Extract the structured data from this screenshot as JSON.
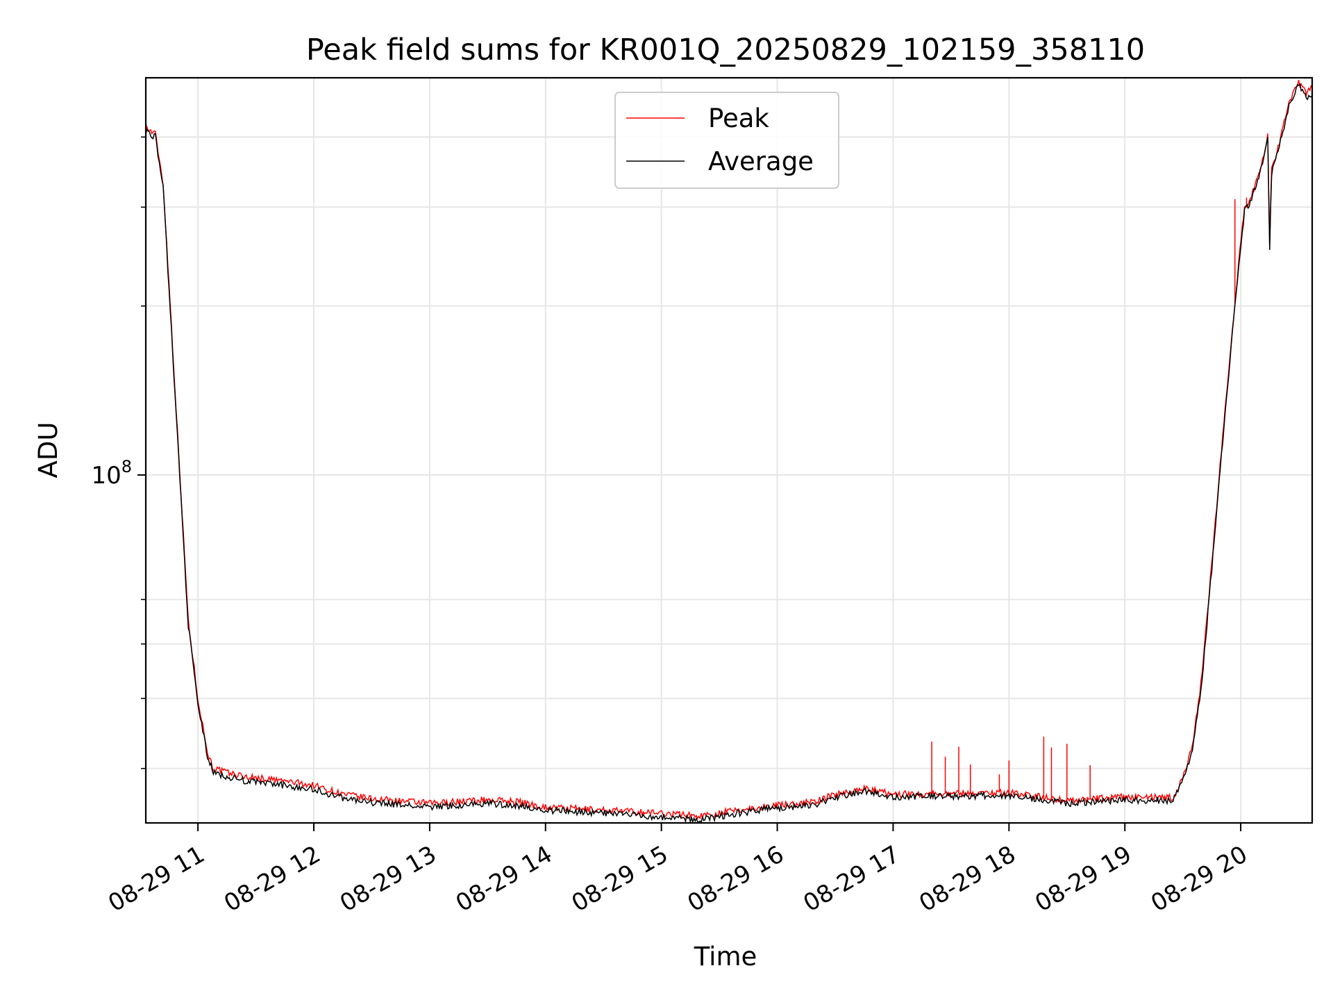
{
  "chart_data": {
    "type": "line",
    "title": "Peak field sums for KR001Q_20250829_102159_358110",
    "xlabel": "Time",
    "ylabel": "ADU",
    "yscale": "log",
    "xlim": [
      "2025-08-29 10:33",
      "2025-08-29 20:37"
    ],
    "ylim": [
      24000000,
      510000000
    ],
    "grid": true,
    "legend_position": "top-center",
    "x_ticks": [
      "08-29 11",
      "08-29 12",
      "08-29 13",
      "08-29 14",
      "08-29 15",
      "08-29 16",
      "08-29 17",
      "08-29 18",
      "08-29 19",
      "08-29 20"
    ],
    "y_tick_labels": [
      {
        "base": "10",
        "exponent": "8",
        "value": 100000000
      }
    ],
    "y_minor_ticks": [
      30000000,
      40000000,
      50000000,
      60000000,
      200000000,
      300000000,
      400000000
    ],
    "series": [
      {
        "name": "Peak",
        "color": "#ff0000",
        "x": [
          "2025-08-29 10:33",
          "2025-08-29 10:38",
          "2025-08-29 10:42",
          "2025-08-29 10:45",
          "2025-08-29 10:50",
          "2025-08-29 10:55",
          "2025-08-29 11:00",
          "2025-08-29 11:05",
          "2025-08-29 11:08",
          "2025-08-29 11:15",
          "2025-08-29 11:25",
          "2025-08-29 11:45",
          "2025-08-29 12:00",
          "2025-08-29 12:15",
          "2025-08-29 12:30",
          "2025-08-29 13:00",
          "2025-08-29 13:30",
          "2025-08-29 13:45",
          "2025-08-29 14:00",
          "2025-08-29 14:30",
          "2025-08-29 15:00",
          "2025-08-29 15:20",
          "2025-08-29 15:40",
          "2025-08-29 16:00",
          "2025-08-29 16:20",
          "2025-08-29 16:30",
          "2025-08-29 16:45",
          "2025-08-29 17:00",
          "2025-08-29 17:30",
          "2025-08-29 18:00",
          "2025-08-29 18:30",
          "2025-08-29 19:00",
          "2025-08-29 19:25",
          "2025-08-29 19:30",
          "2025-08-29 19:35",
          "2025-08-29 19:40",
          "2025-08-29 19:45",
          "2025-08-29 19:50",
          "2025-08-29 19:55",
          "2025-08-29 19:59",
          "2025-08-29 20:02",
          "2025-08-29 20:05",
          "2025-08-29 20:10",
          "2025-08-29 20:14",
          "2025-08-29 20:15",
          "2025-08-29 20:16",
          "2025-08-29 20:20",
          "2025-08-29 20:25",
          "2025-08-29 20:30",
          "2025-08-29 20:34",
          "2025-08-29 20:37"
        ],
        "y": [
          415000000,
          405000000,
          330000000,
          220000000,
          110000000,
          55000000,
          40000000,
          32000000,
          30000000,
          29500000,
          29000000,
          28500000,
          28000000,
          27000000,
          26500000,
          26000000,
          26400000,
          26200000,
          25600000,
          25300000,
          25000000,
          24700000,
          25300000,
          25800000,
          26200000,
          27000000,
          27600000,
          27000000,
          27100000,
          27200000,
          26300000,
          26700000,
          26600000,
          28800000,
          33000000,
          44000000,
          70000000,
          110000000,
          170000000,
          240000000,
          300000000,
          310000000,
          350000000,
          400000000,
          260000000,
          350000000,
          390000000,
          460000000,
          500000000,
          480000000,
          490000000
        ],
        "spikes": [
          {
            "x": "2025-08-29 17:20",
            "y": 33500000
          },
          {
            "x": "2025-08-29 17:27",
            "y": 31500000
          },
          {
            "x": "2025-08-29 17:34",
            "y": 32800000
          },
          {
            "x": "2025-08-29 17:40",
            "y": 30500000
          },
          {
            "x": "2025-08-29 17:55",
            "y": 29300000
          },
          {
            "x": "2025-08-29 18:00",
            "y": 31000000
          },
          {
            "x": "2025-08-29 18:18",
            "y": 34200000
          },
          {
            "x": "2025-08-29 18:22",
            "y": 32700000
          },
          {
            "x": "2025-08-29 18:30",
            "y": 33200000
          },
          {
            "x": "2025-08-29 18:42",
            "y": 30400000
          },
          {
            "x": "2025-08-29 19:57",
            "y": 310000000
          },
          {
            "x": "2025-08-29 20:03",
            "y": 312000000
          }
        ]
      },
      {
        "name": "Average",
        "color": "#000000",
        "x": [
          "2025-08-29 10:33",
          "2025-08-29 10:38",
          "2025-08-29 10:42",
          "2025-08-29 10:45",
          "2025-08-29 10:50",
          "2025-08-29 10:55",
          "2025-08-29 11:00",
          "2025-08-29 11:05",
          "2025-08-29 11:08",
          "2025-08-29 11:15",
          "2025-08-29 11:25",
          "2025-08-29 11:45",
          "2025-08-29 12:00",
          "2025-08-29 12:15",
          "2025-08-29 12:30",
          "2025-08-29 13:00",
          "2025-08-29 13:30",
          "2025-08-29 13:45",
          "2025-08-29 14:00",
          "2025-08-29 14:30",
          "2025-08-29 15:00",
          "2025-08-29 15:20",
          "2025-08-29 15:40",
          "2025-08-29 16:00",
          "2025-08-29 16:20",
          "2025-08-29 16:30",
          "2025-08-29 16:45",
          "2025-08-29 17:00",
          "2025-08-29 17:30",
          "2025-08-29 18:00",
          "2025-08-29 18:30",
          "2025-08-29 19:00",
          "2025-08-29 19:25",
          "2025-08-29 19:30",
          "2025-08-29 19:35",
          "2025-08-29 19:40",
          "2025-08-29 19:45",
          "2025-08-29 19:50",
          "2025-08-29 19:55",
          "2025-08-29 19:59",
          "2025-08-29 20:02",
          "2025-08-29 20:05",
          "2025-08-29 20:10",
          "2025-08-29 20:14",
          "2025-08-29 20:15",
          "2025-08-29 20:16",
          "2025-08-29 20:20",
          "2025-08-29 20:25",
          "2025-08-29 20:30",
          "2025-08-29 20:34",
          "2025-08-29 20:37"
        ],
        "y": [
          410000000,
          400000000,
          325000000,
          215000000,
          108000000,
          54000000,
          39000000,
          31500000,
          29500000,
          29000000,
          28500000,
          28000000,
          27500000,
          26600000,
          26100000,
          25600000,
          26000000,
          25800000,
          25300000,
          25000000,
          24600000,
          24300000,
          25000000,
          25500000,
          25900000,
          26700000,
          27300000,
          26700000,
          26800000,
          26900000,
          26000000,
          26400000,
          26300000,
          28400000,
          32500000,
          43000000,
          68000000,
          108000000,
          168000000,
          237000000,
          296000000,
          306000000,
          345000000,
          395000000,
          255000000,
          345000000,
          385000000,
          455000000,
          495000000,
          470000000,
          475000000
        ]
      }
    ]
  }
}
